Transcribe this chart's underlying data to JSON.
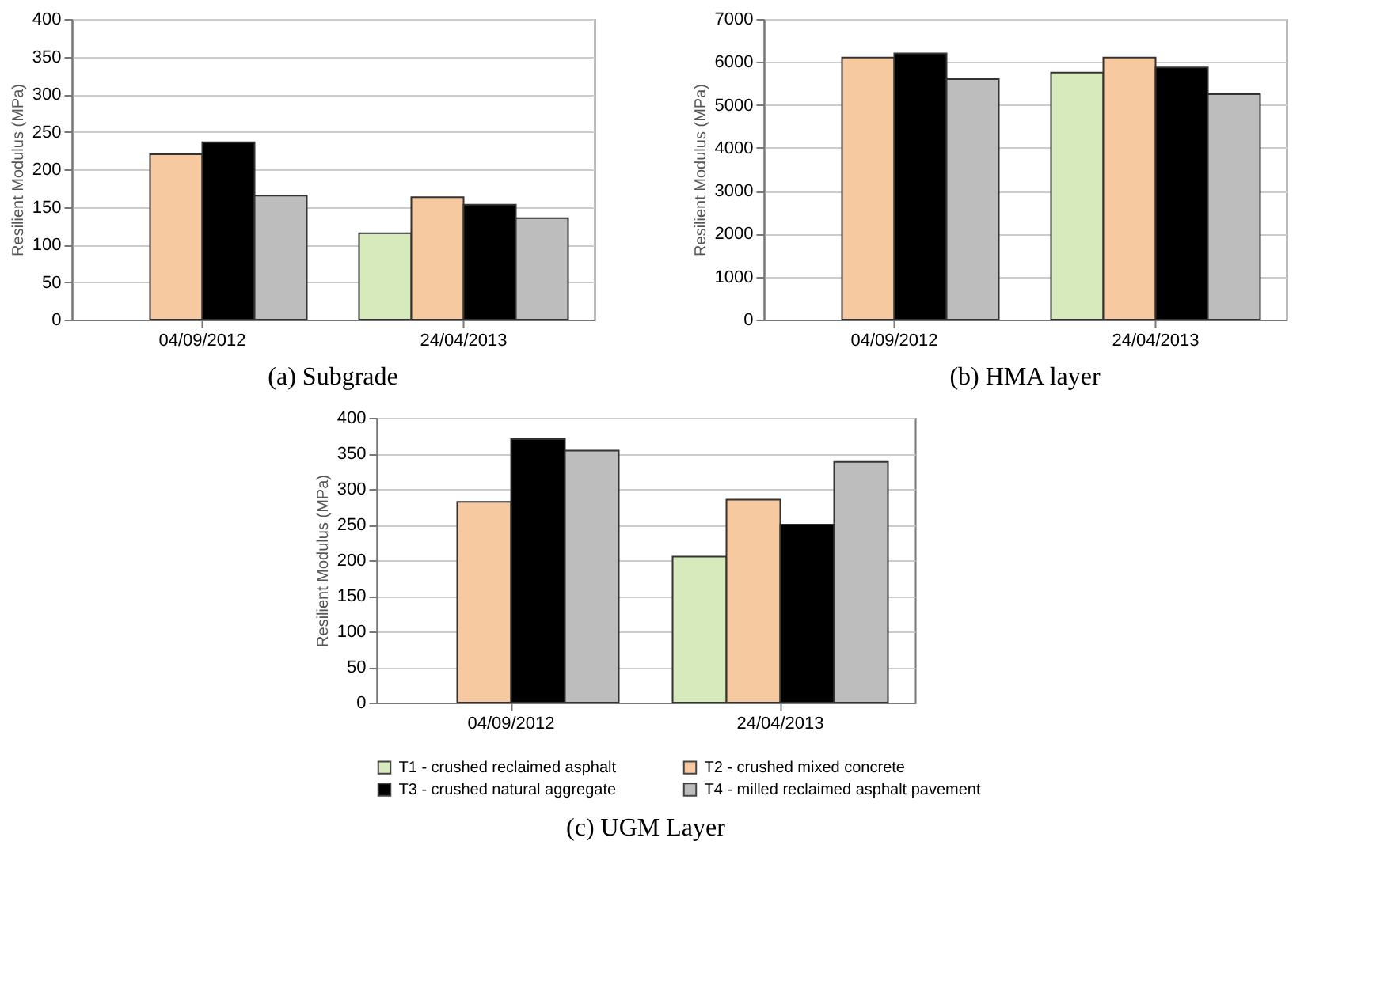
{
  "chart_data": [
    {
      "type": "bar",
      "title": "(a) Subgrade",
      "ylabel": "Resilient Modulus (MPa)",
      "categories": [
        "04/09/2012",
        "24/04/2013"
      ],
      "series": [
        {
          "color": "#d6eabc",
          "values": [
            null,
            115
          ]
        },
        {
          "color": "#f7c9a0",
          "values": [
            220,
            163
          ]
        },
        {
          "color": "#000000",
          "values": [
            236,
            153
          ]
        },
        {
          "color": "#bdbdbd",
          "values": [
            165,
            135
          ]
        }
      ],
      "ylim": [
        0,
        400
      ],
      "yticks": [
        0,
        50,
        100,
        150,
        200,
        250,
        300,
        350,
        400
      ],
      "grid": "y",
      "legend": false
    },
    {
      "type": "bar",
      "title": "(b) HMA layer",
      "ylabel": "Resilient Modulus (MPa)",
      "categories": [
        "04/09/2012",
        "24/04/2013"
      ],
      "series": [
        {
          "color": "#d6eabc",
          "values": [
            null,
            5750
          ]
        },
        {
          "color": "#f7c9a0",
          "values": [
            6100,
            6100
          ]
        },
        {
          "color": "#000000",
          "values": [
            6200,
            5870
          ]
        },
        {
          "color": "#bdbdbd",
          "values": [
            5600,
            5250
          ]
        }
      ],
      "ylim": [
        0,
        7000
      ],
      "yticks": [
        0,
        1000,
        2000,
        3000,
        4000,
        5000,
        6000,
        7000
      ],
      "grid": "y",
      "legend": false
    },
    {
      "type": "bar",
      "title": "(c) UGM Layer",
      "ylabel": "Resilient Modulus (MPa)",
      "categories": [
        "04/09/2012",
        "24/04/2013"
      ],
      "series": [
        {
          "name": "T1 - crushed reclaimed asphalt",
          "color": "#d6eabc",
          "values": [
            null,
            205
          ]
        },
        {
          "name": "T2 - crushed mixed concrete",
          "color": "#f7c9a0",
          "values": [
            282,
            285
          ]
        },
        {
          "name": "T3 - crushed natural aggregate",
          "color": "#000000",
          "values": [
            370,
            250
          ]
        },
        {
          "name": "T4 - milled reclaimed asphalt pavement",
          "color": "#bdbdbd",
          "values": [
            354,
            338
          ]
        }
      ],
      "ylim": [
        0,
        400
      ],
      "yticks": [
        0,
        50,
        100,
        150,
        200,
        250,
        300,
        350,
        400
      ],
      "grid": "y",
      "legend": "bottom"
    }
  ]
}
